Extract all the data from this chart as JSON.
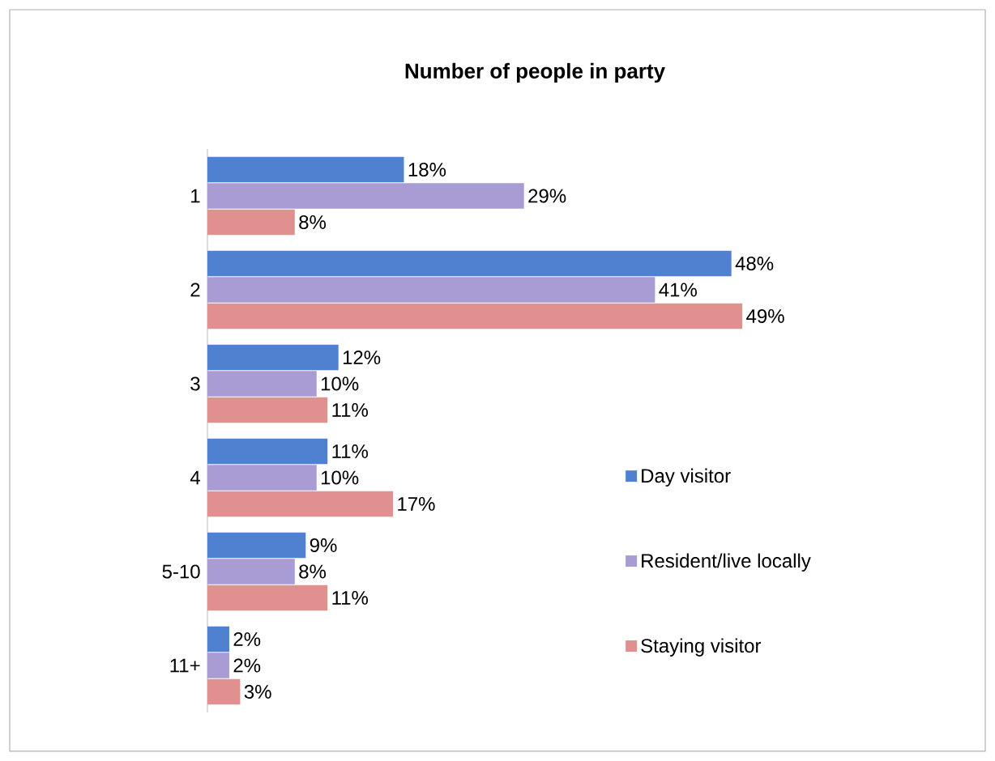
{
  "chart_data": {
    "type": "bar",
    "orientation": "horizontal",
    "title": "Number of people in party",
    "categories": [
      "1",
      "2",
      "3",
      "4",
      "5-10",
      "11+"
    ],
    "series": [
      {
        "name": "Day visitor",
        "color": "#4f81d0",
        "values": [
          18,
          48,
          12,
          11,
          9,
          2
        ],
        "value_labels": [
          "18%",
          "48%",
          "12%",
          "11%",
          "9%",
          "2%"
        ]
      },
      {
        "name": "Resident/live locally",
        "color": "#a99bd3",
        "values": [
          29,
          41,
          10,
          10,
          8,
          2
        ],
        "value_labels": [
          "29%",
          "41%",
          "10%",
          "10%",
          "8%",
          "2%"
        ]
      },
      {
        "name": "Staying visitor",
        "color": "#e0908e",
        "values": [
          8,
          49,
          11,
          17,
          11,
          3
        ],
        "value_labels": [
          "8%",
          "49%",
          "11%",
          "17%",
          "11%",
          "3%"
        ]
      }
    ],
    "legend": "right",
    "tick_labels": "y"
  }
}
